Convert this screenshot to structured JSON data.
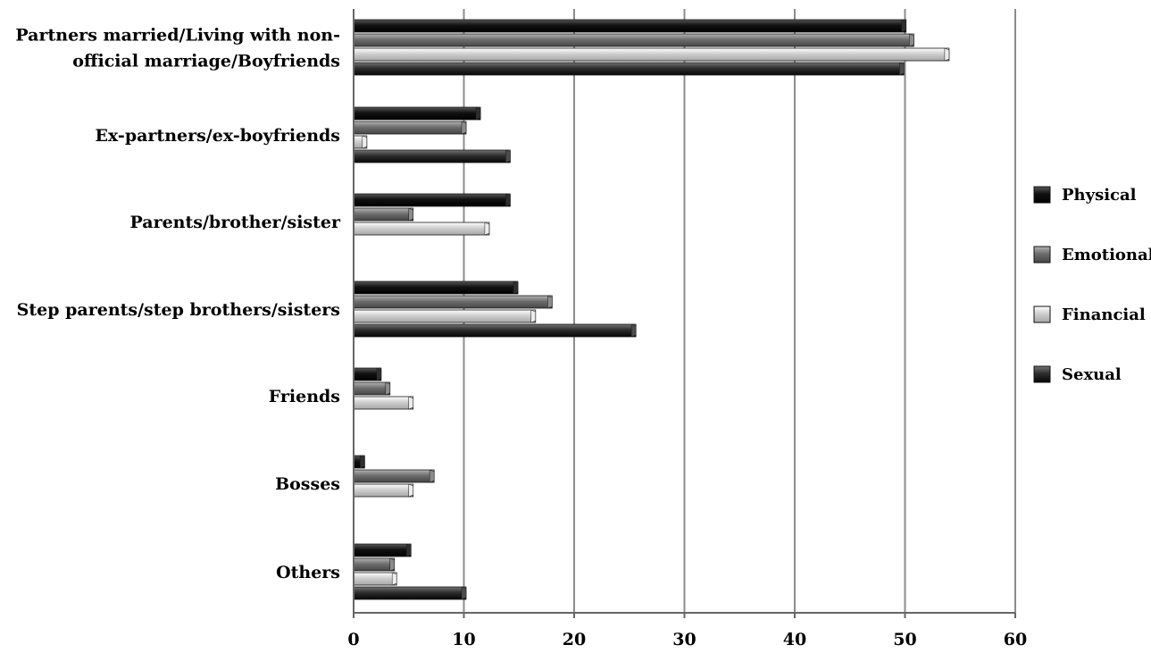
{
  "chart_data": {
    "type": "bar",
    "orientation": "horizontal",
    "title": "",
    "xlabel": "",
    "ylabel": "",
    "xlim": [
      0,
      60
    ],
    "x_ticks": [
      0,
      10,
      20,
      30,
      40,
      50,
      60
    ],
    "grid": true,
    "legend_position": "right",
    "categories": [
      [
        "Partners married/Living with non-",
        "official marriage/Boyfriends"
      ],
      [
        "Ex-partners/ex-boyfriends"
      ],
      [
        "Parents/brother/sister"
      ],
      [
        "Step parents/step brothers/sisters"
      ],
      [
        "Friends"
      ],
      [
        "Bosses"
      ],
      [
        "Others"
      ]
    ],
    "series": [
      {
        "name": "Physical",
        "color": "#111111",
        "values": [
          50.1,
          11.5,
          14.2,
          14.9,
          2.5,
          1.0,
          5.2
        ]
      },
      {
        "name": "Emotional",
        "color": "#6e6e6e",
        "values": [
          50.8,
          10.2,
          5.4,
          18.0,
          3.3,
          7.3,
          3.7
        ]
      },
      {
        "name": "Financial",
        "color": "#cfcfcf",
        "values": [
          54.0,
          1.2,
          12.3,
          16.5,
          5.4,
          5.4,
          3.9
        ]
      },
      {
        "name": "Sexual",
        "color": "#2e2e2e",
        "values": [
          49.9,
          14.2,
          0,
          25.6,
          0,
          0,
          10.2
        ]
      }
    ]
  }
}
